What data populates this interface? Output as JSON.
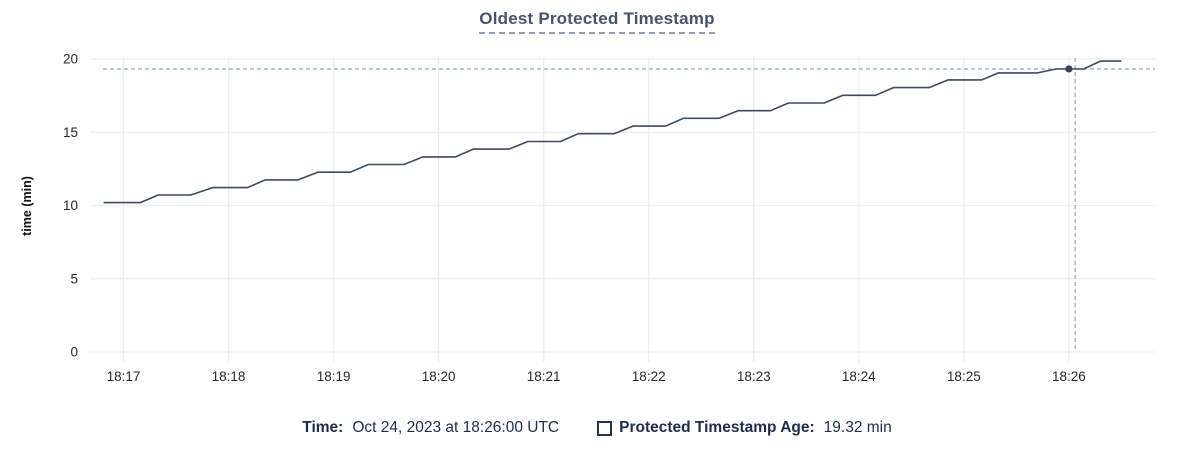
{
  "colors": {
    "title_text": "#46536e",
    "title_underline": "#93a0b8",
    "line": "#3d4a60",
    "hover_dot": "#36415a",
    "grid": "#ededed",
    "crosshair": "#9fafbc",
    "axis_text": "#24282e",
    "axis_title_text": "#111111",
    "legend_text": "#1d2c4e",
    "background": "#ffffff"
  },
  "chart_data": {
    "type": "line",
    "title": "Oldest Protected Timestamp",
    "xlabel": "",
    "ylabel": "time (min)",
    "grid": true,
    "legend_position": "bottom",
    "ylim": [
      0,
      20
    ],
    "yticks": [
      {
        "v": 0,
        "label": "0"
      },
      {
        "v": 5,
        "label": "5"
      },
      {
        "v": 10,
        "label": "10"
      },
      {
        "v": 15,
        "label": "15"
      },
      {
        "v": 20,
        "label": "20"
      }
    ],
    "xlim": [
      16.7,
      26.82
    ],
    "x_unit": "minutes after 18:00 UTC",
    "xticks": [
      {
        "t": 17,
        "label": "18:17"
      },
      {
        "t": 18,
        "label": "18:18"
      },
      {
        "t": 19,
        "label": "18:19"
      },
      {
        "t": 20,
        "label": "18:20"
      },
      {
        "t": 21,
        "label": "18:21"
      },
      {
        "t": 22,
        "label": "18:22"
      },
      {
        "t": 23,
        "label": "18:23"
      },
      {
        "t": 24,
        "label": "18:24"
      },
      {
        "t": 25,
        "label": "18:25"
      },
      {
        "t": 26,
        "label": "18:26"
      }
    ],
    "series": [
      {
        "name": "Protected Timestamp Age",
        "unit": "min",
        "points": [
          [
            16.81,
            10.2
          ],
          [
            17.16,
            10.2
          ],
          [
            17.33,
            10.72
          ],
          [
            17.64,
            10.72
          ],
          [
            17.85,
            11.22
          ],
          [
            18.18,
            11.22
          ],
          [
            18.35,
            11.75
          ],
          [
            18.66,
            11.75
          ],
          [
            18.85,
            12.27
          ],
          [
            19.16,
            12.27
          ],
          [
            19.33,
            12.8
          ],
          [
            19.67,
            12.8
          ],
          [
            19.85,
            13.32
          ],
          [
            20.16,
            13.32
          ],
          [
            20.33,
            13.85
          ],
          [
            20.67,
            13.85
          ],
          [
            20.85,
            14.37
          ],
          [
            21.16,
            14.37
          ],
          [
            21.33,
            14.9
          ],
          [
            21.67,
            14.9
          ],
          [
            21.85,
            15.42
          ],
          [
            22.16,
            15.42
          ],
          [
            22.33,
            15.95
          ],
          [
            22.67,
            15.95
          ],
          [
            22.85,
            16.47
          ],
          [
            23.16,
            16.47
          ],
          [
            23.33,
            17.0
          ],
          [
            23.67,
            17.0
          ],
          [
            23.85,
            17.52
          ],
          [
            24.16,
            17.52
          ],
          [
            24.33,
            18.05
          ],
          [
            24.67,
            18.05
          ],
          [
            24.85,
            18.57
          ],
          [
            25.17,
            18.57
          ],
          [
            25.33,
            19.05
          ],
          [
            25.7,
            19.05
          ],
          [
            25.88,
            19.32
          ],
          [
            26.14,
            19.32
          ],
          [
            26.3,
            19.86
          ],
          [
            26.5,
            19.86
          ]
        ]
      }
    ],
    "hover": {
      "t": 26.0,
      "value": 19.32,
      "crosshair_t": 26.06
    }
  },
  "legend": {
    "time_label": "Time:",
    "time_value": "Oct 24, 2023 at 18:26:00 UTC",
    "series_label": "Protected Timestamp Age:",
    "series_value": "19.32 min"
  }
}
